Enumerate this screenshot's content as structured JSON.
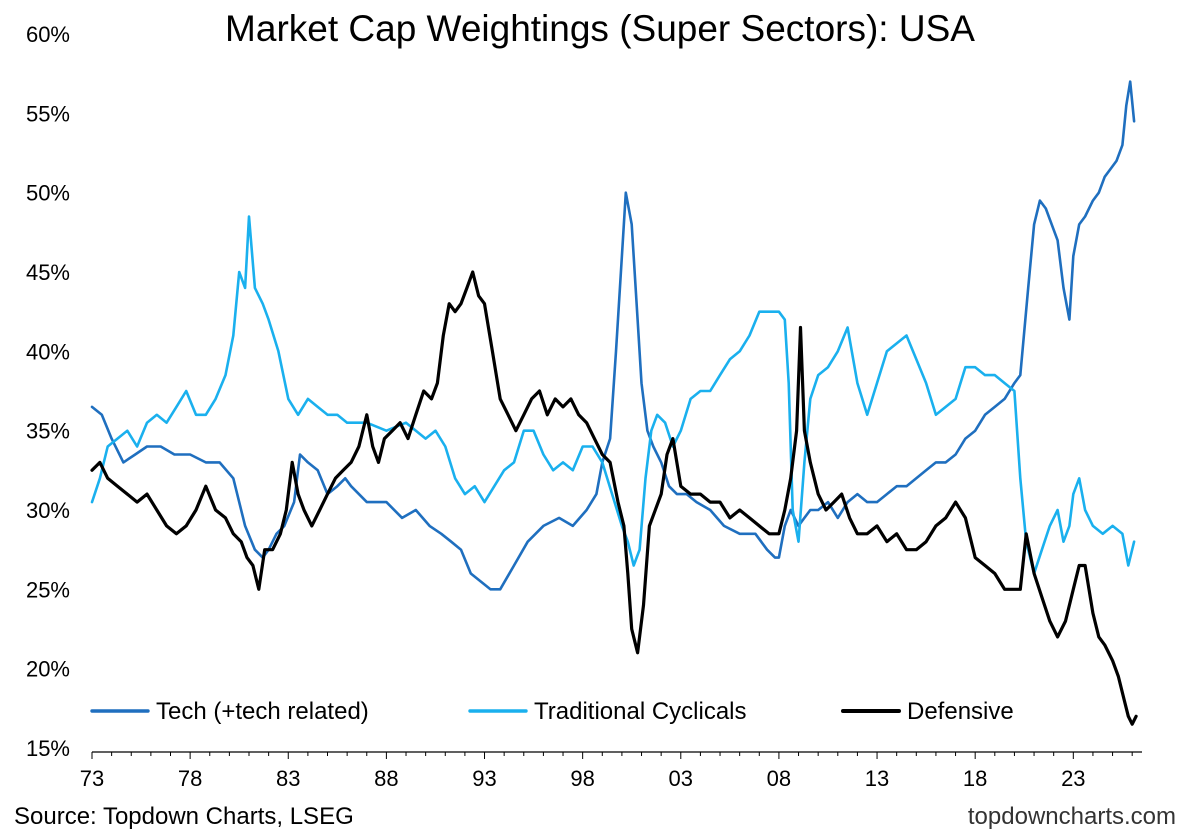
{
  "title": "Market Cap Weightings (Super Sectors): USA",
  "source": "Source: Topdown Charts, LSEG",
  "watermark": "topdowncharts.com",
  "chart_data": {
    "type": "line",
    "title": "Market Cap Weightings (Super Sectors): USA",
    "xlabel": "",
    "ylabel": "",
    "xlim": [
      1973,
      2026.5
    ],
    "ylim": [
      15,
      60
    ],
    "x_ticks": [
      1973,
      1978,
      1983,
      1988,
      1993,
      1998,
      2003,
      2008,
      2013,
      2018,
      2023
    ],
    "x_tick_labels": [
      "73",
      "78",
      "83",
      "88",
      "93",
      "98",
      "03",
      "08",
      "13",
      "18",
      "23"
    ],
    "y_ticks": [
      15,
      20,
      25,
      30,
      35,
      40,
      45,
      50,
      55,
      60
    ],
    "y_tick_labels": [
      "15%",
      "20%",
      "25%",
      "30%",
      "35%",
      "40%",
      "45%",
      "50%",
      "55%",
      "60%"
    ],
    "grid": false,
    "legend_position": "bottom",
    "series": [
      {
        "name": "Tech (+tech related)",
        "color": "#1f6fbf",
        "x": [
          1973.0,
          1973.5,
          1974.0,
          1974.6,
          1975.2,
          1975.8,
          1976.5,
          1977.2,
          1978.0,
          1978.8,
          1979.5,
          1980.2,
          1980.8,
          1981.3,
          1981.7,
          1982.0,
          1982.4,
          1982.8,
          1983.3,
          1983.6,
          1984.0,
          1984.5,
          1985.0,
          1985.5,
          1985.9,
          1986.2,
          1986.6,
          1987.0,
          1987.5,
          1988.0,
          1988.8,
          1989.5,
          1990.2,
          1990.8,
          1991.3,
          1991.8,
          1992.3,
          1992.8,
          1993.3,
          1993.8,
          1994.5,
          1995.2,
          1996.0,
          1996.8,
          1997.5,
          1998.2,
          1998.7,
          1999.0,
          1999.4,
          1999.7,
          2000.0,
          2000.2,
          2000.5,
          2000.8,
          2001.0,
          2001.3,
          2001.6,
          2002.0,
          2002.4,
          2002.8,
          2003.3,
          2003.8,
          2004.5,
          2005.2,
          2006.0,
          2006.8,
          2007.4,
          2007.8,
          2008.0,
          2008.3,
          2008.6,
          2009.0,
          2009.3,
          2009.6,
          2010.0,
          2010.5,
          2011.0,
          2011.5,
          2012.0,
          2012.5,
          2013.0,
          2013.5,
          2014.0,
          2014.5,
          2015.0,
          2015.5,
          2016.0,
          2016.5,
          2017.0,
          2017.5,
          2018.0,
          2018.5,
          2019.0,
          2019.5,
          2020.0,
          2020.3,
          2020.7,
          2021.0,
          2021.3,
          2021.6,
          2021.9,
          2022.2,
          2022.5,
          2022.8,
          2023.0,
          2023.3,
          2023.6,
          2024.0,
          2024.3,
          2024.6,
          2024.9,
          2025.2,
          2025.5,
          2025.7,
          2025.9,
          2026.1
        ],
        "values": [
          36.5,
          36.0,
          34.5,
          33.0,
          33.5,
          34.0,
          34.0,
          33.5,
          33.5,
          33.0,
          33.0,
          32.0,
          29.0,
          27.5,
          27.0,
          27.5,
          28.5,
          29.0,
          30.5,
          33.5,
          33.0,
          32.5,
          31.0,
          31.5,
          32.0,
          31.5,
          31.0,
          30.5,
          30.5,
          30.5,
          29.5,
          30.0,
          29.0,
          28.5,
          28.0,
          27.5,
          26.0,
          25.5,
          25.0,
          25.0,
          26.5,
          28.0,
          29.0,
          29.5,
          29.0,
          30.0,
          31.0,
          33.0,
          34.5,
          40.0,
          46.0,
          50.0,
          48.0,
          42.0,
          38.0,
          35.0,
          34.0,
          33.0,
          31.5,
          31.0,
          31.0,
          30.5,
          30.0,
          29.0,
          28.5,
          28.5,
          27.5,
          27.0,
          27.0,
          29.0,
          30.0,
          29.0,
          29.5,
          30.0,
          30.0,
          30.5,
          29.5,
          30.5,
          31.0,
          30.5,
          30.5,
          31.0,
          31.5,
          31.5,
          32.0,
          32.5,
          33.0,
          33.0,
          33.5,
          34.5,
          35.0,
          36.0,
          36.5,
          37.0,
          38.0,
          38.5,
          44.0,
          48.0,
          49.5,
          49.0,
          48.0,
          47.0,
          44.0,
          42.0,
          46.0,
          48.0,
          48.5,
          49.5,
          50.0,
          51.0,
          51.5,
          52.0,
          53.0,
          55.5,
          57.0,
          54.5
        ]
      },
      {
        "name": "Traditional Cyclicals",
        "color": "#1ab0ee",
        "x": [
          1973.0,
          1973.4,
          1973.8,
          1974.3,
          1974.8,
          1975.3,
          1975.8,
          1976.3,
          1976.8,
          1977.3,
          1977.8,
          1978.3,
          1978.8,
          1979.3,
          1979.8,
          1980.2,
          1980.5,
          1980.8,
          1981.0,
          1981.3,
          1981.7,
          1982.0,
          1982.5,
          1983.0,
          1983.5,
          1984.0,
          1984.5,
          1985.0,
          1985.5,
          1986.0,
          1987.0,
          1988.0,
          1989.0,
          1990.0,
          1990.5,
          1991.0,
          1991.5,
          1992.0,
          1992.5,
          1993.0,
          1993.5,
          1994.0,
          1994.5,
          1995.0,
          1995.5,
          1996.0,
          1996.5,
          1997.0,
          1997.5,
          1998.0,
          1998.5,
          1999.0,
          1999.5,
          2000.0,
          2000.3,
          2000.6,
          2000.9,
          2001.2,
          2001.5,
          2001.8,
          2002.2,
          2002.6,
          2003.0,
          2003.5,
          2004.0,
          2004.5,
          2005.0,
          2005.5,
          2006.0,
          2006.5,
          2007.0,
          2007.5,
          2008.0,
          2008.3,
          2008.5,
          2008.7,
          2009.0,
          2009.3,
          2009.6,
          2010.0,
          2010.5,
          2011.0,
          2011.5,
          2012.0,
          2012.5,
          2013.0,
          2013.5,
          2014.0,
          2014.5,
          2015.0,
          2015.5,
          2016.0,
          2016.5,
          2017.0,
          2017.5,
          2018.0,
          2018.5,
          2019.0,
          2019.5,
          2020.0,
          2020.3,
          2020.6,
          2021.0,
          2021.4,
          2021.8,
          2022.2,
          2022.5,
          2022.8,
          2023.0,
          2023.3,
          2023.6,
          2024.0,
          2024.5,
          2025.0,
          2025.5,
          2025.8,
          2026.1
        ],
        "values": [
          30.5,
          32.0,
          34.0,
          34.5,
          35.0,
          34.0,
          35.5,
          36.0,
          35.5,
          36.5,
          37.5,
          36.0,
          36.0,
          37.0,
          38.5,
          41.0,
          45.0,
          44.0,
          48.5,
          44.0,
          43.0,
          42.0,
          40.0,
          37.0,
          36.0,
          37.0,
          36.5,
          36.0,
          36.0,
          35.5,
          35.5,
          35.0,
          35.5,
          34.5,
          35.0,
          34.0,
          32.0,
          31.0,
          31.5,
          30.5,
          31.5,
          32.5,
          33.0,
          35.0,
          35.0,
          33.5,
          32.5,
          33.0,
          32.5,
          34.0,
          34.0,
          33.0,
          31.0,
          29.0,
          28.0,
          26.5,
          27.5,
          32.0,
          35.0,
          36.0,
          35.5,
          34.0,
          35.0,
          37.0,
          37.5,
          37.5,
          38.5,
          39.5,
          40.0,
          41.0,
          42.5,
          42.5,
          42.5,
          42.0,
          38.0,
          30.0,
          28.0,
          33.0,
          37.0,
          38.5,
          39.0,
          40.0,
          41.5,
          38.0,
          36.0,
          38.0,
          40.0,
          40.5,
          41.0,
          39.5,
          38.0,
          36.0,
          36.5,
          37.0,
          39.0,
          39.0,
          38.5,
          38.5,
          38.0,
          37.5,
          32.0,
          28.0,
          26.0,
          27.5,
          29.0,
          30.0,
          28.0,
          29.0,
          31.0,
          32.0,
          30.0,
          29.0,
          28.5,
          29.0,
          28.5,
          26.5,
          28.0
        ]
      },
      {
        "name": "Defensive",
        "color": "#000000",
        "x": [
          1973.0,
          1973.4,
          1973.8,
          1974.3,
          1974.8,
          1975.3,
          1975.8,
          1976.3,
          1976.8,
          1977.3,
          1977.8,
          1978.3,
          1978.8,
          1979.3,
          1979.8,
          1980.2,
          1980.6,
          1980.9,
          1981.2,
          1981.5,
          1981.8,
          1982.2,
          1982.6,
          1982.9,
          1983.2,
          1983.5,
          1983.8,
          1984.2,
          1984.6,
          1985.0,
          1985.4,
          1985.8,
          1986.2,
          1986.6,
          1987.0,
          1987.3,
          1987.6,
          1987.9,
          1988.3,
          1988.7,
          1989.1,
          1989.5,
          1989.9,
          1990.3,
          1990.6,
          1990.9,
          1991.2,
          1991.5,
          1991.8,
          1992.1,
          1992.4,
          1992.7,
          1993.0,
          1993.4,
          1993.8,
          1994.2,
          1994.6,
          1995.0,
          1995.4,
          1995.8,
          1996.2,
          1996.6,
          1997.0,
          1997.4,
          1997.8,
          1998.2,
          1998.6,
          1999.0,
          1999.4,
          1999.8,
          2000.1,
          2000.3,
          2000.5,
          2000.8,
          2001.1,
          2001.4,
          2001.7,
          2002.0,
          2002.3,
          2002.6,
          2003.0,
          2003.5,
          2004.0,
          2004.5,
          2005.0,
          2005.5,
          2006.0,
          2006.5,
          2007.0,
          2007.5,
          2008.0,
          2008.3,
          2008.6,
          2008.9,
          2009.1,
          2009.3,
          2009.6,
          2010.0,
          2010.4,
          2010.8,
          2011.2,
          2011.6,
          2012.0,
          2012.5,
          2013.0,
          2013.5,
          2014.0,
          2014.5,
          2015.0,
          2015.5,
          2016.0,
          2016.5,
          2017.0,
          2017.5,
          2018.0,
          2018.5,
          2019.0,
          2019.5,
          2020.0,
          2020.3,
          2020.6,
          2021.0,
          2021.4,
          2021.8,
          2022.2,
          2022.6,
          2023.0,
          2023.3,
          2023.6,
          2024.0,
          2024.3,
          2024.6,
          2025.0,
          2025.3,
          2025.6,
          2025.8,
          2026.0,
          2026.2
        ],
        "values": [
          32.5,
          33.0,
          32.0,
          31.5,
          31.0,
          30.5,
          31.0,
          30.0,
          29.0,
          28.5,
          29.0,
          30.0,
          31.5,
          30.0,
          29.5,
          28.5,
          28.0,
          27.0,
          26.5,
          25.0,
          27.5,
          27.5,
          28.5,
          30.0,
          33.0,
          31.0,
          30.0,
          29.0,
          30.0,
          31.0,
          32.0,
          32.5,
          33.0,
          34.0,
          36.0,
          34.0,
          33.0,
          34.5,
          35.0,
          35.5,
          34.5,
          36.0,
          37.5,
          37.0,
          38.0,
          41.0,
          43.0,
          42.5,
          43.0,
          44.0,
          45.0,
          43.5,
          43.0,
          40.0,
          37.0,
          36.0,
          35.0,
          36.0,
          37.0,
          37.5,
          36.0,
          37.0,
          36.5,
          37.0,
          36.0,
          35.5,
          34.5,
          33.5,
          33.0,
          30.5,
          29.0,
          26.0,
          22.5,
          21.0,
          24.0,
          29.0,
          30.0,
          31.0,
          33.5,
          34.5,
          31.5,
          31.0,
          31.0,
          30.5,
          30.5,
          29.5,
          30.0,
          29.5,
          29.0,
          28.5,
          28.5,
          30.0,
          32.0,
          35.0,
          41.5,
          35.0,
          33.0,
          31.0,
          30.0,
          30.5,
          31.0,
          29.5,
          28.5,
          28.5,
          29.0,
          28.0,
          28.5,
          27.5,
          27.5,
          28.0,
          29.0,
          29.5,
          30.5,
          29.5,
          27.0,
          26.5,
          26.0,
          25.0,
          25.0,
          25.0,
          28.5,
          26.0,
          24.5,
          23.0,
          22.0,
          23.0,
          25.0,
          26.5,
          26.5,
          23.5,
          22.0,
          21.5,
          20.5,
          19.5,
          18.0,
          17.0,
          16.5,
          17.0
        ]
      }
    ]
  }
}
